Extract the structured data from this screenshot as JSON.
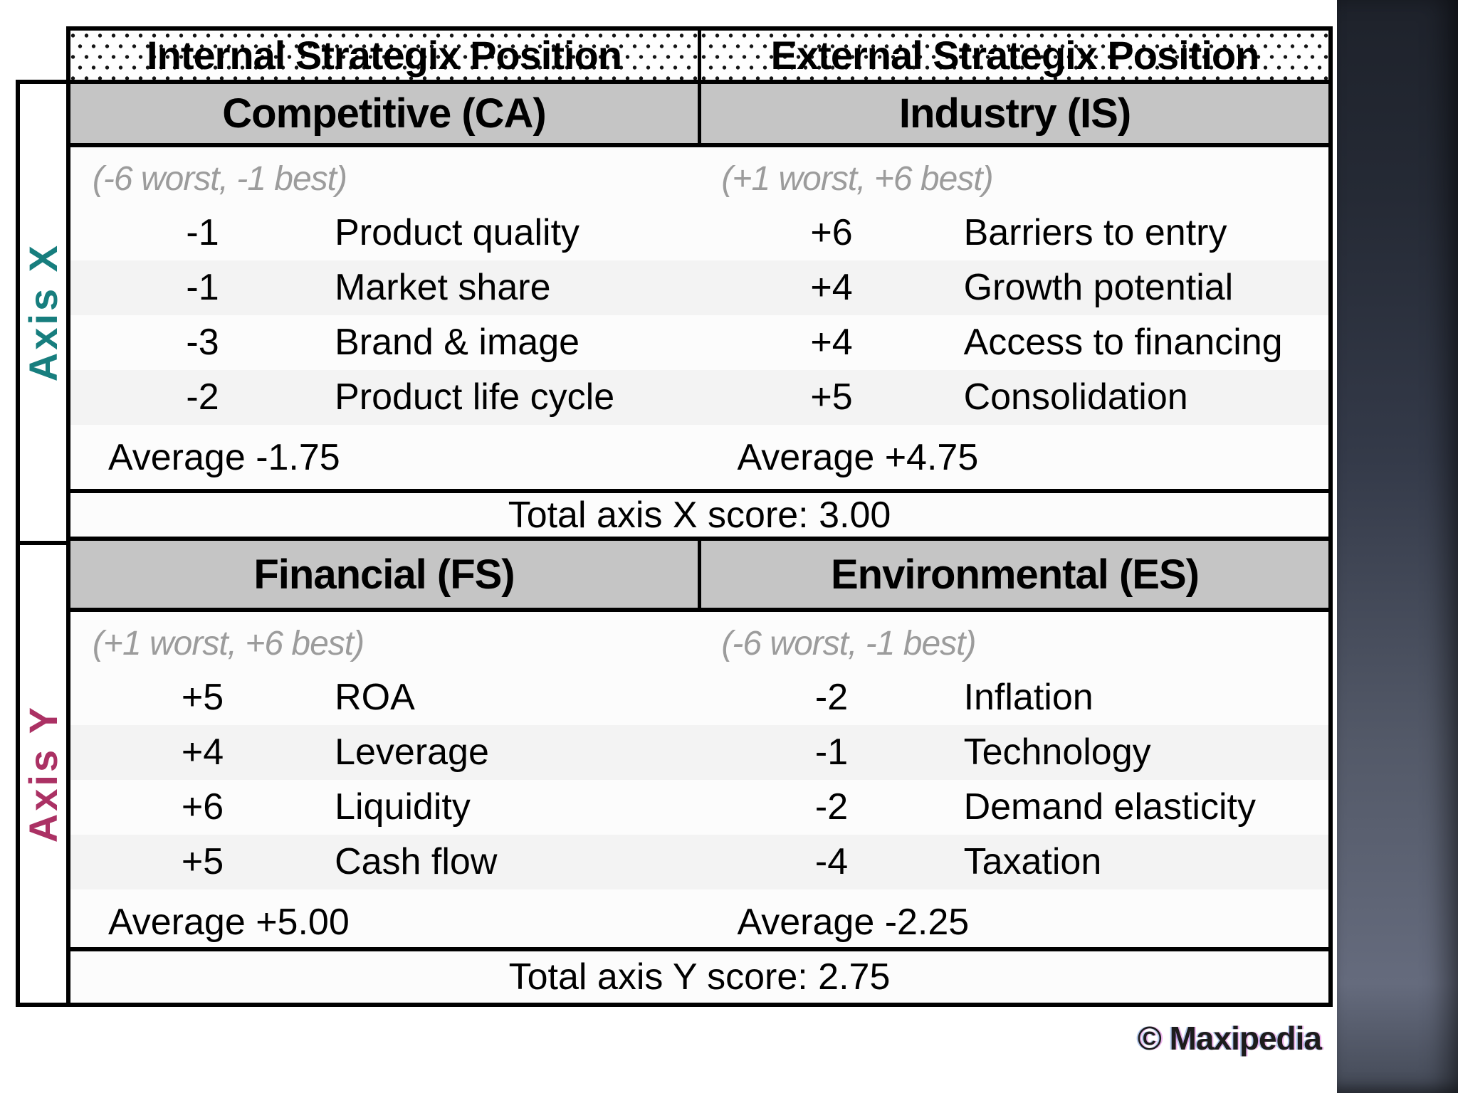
{
  "top_headers": {
    "internal": "Internal Strategix Position",
    "external": "External Strategix Position"
  },
  "axis_x": {
    "label": "Axis X",
    "total": "Total axis X score: 3.00",
    "left": {
      "header": "Competitive (CA)",
      "note": "(-6 worst, -1 best)",
      "average": "Average -1.75",
      "items": [
        {
          "v": "-1",
          "l": "Product quality"
        },
        {
          "v": "-1",
          "l": "Market share"
        },
        {
          "v": "-3",
          "l": "Brand & image"
        },
        {
          "v": "-2",
          "l": "Product life cycle"
        }
      ]
    },
    "right": {
      "header": "Industry (IS)",
      "note": "(+1 worst, +6 best)",
      "average": "Average +4.75",
      "items": [
        {
          "v": "+6",
          "l": "Barriers to entry"
        },
        {
          "v": "+4",
          "l": "Growth potential"
        },
        {
          "v": "+4",
          "l": "Access to financing"
        },
        {
          "v": "+5",
          "l": "Consolidation"
        }
      ]
    }
  },
  "axis_y": {
    "label": "Axis Y",
    "total": "Total axis Y score: 2.75",
    "left": {
      "header": "Financial (FS)",
      "note": "(+1 worst, +6 best)",
      "average": "Average +5.00",
      "items": [
        {
          "v": "+5",
          "l": "ROA"
        },
        {
          "v": "+4",
          "l": "Leverage"
        },
        {
          "v": "+6",
          "l": "Liquidity"
        },
        {
          "v": "+5",
          "l": "Cash flow"
        }
      ]
    },
    "right": {
      "header": "Environmental (ES)",
      "note": "(-6 worst, -1 best)",
      "average": "Average -2.25",
      "items": [
        {
          "v": "-2",
          "l": "Inflation"
        },
        {
          "v": "-1",
          "l": "Technology"
        },
        {
          "v": "-2",
          "l": "Demand elasticity"
        },
        {
          "v": "-4",
          "l": "Taxation"
        }
      ]
    }
  },
  "footer": {
    "copyright": "© Maxipedia"
  },
  "colors": {
    "axis_x_label": "#177e7e",
    "axis_y_label": "#ab3164",
    "section_header_bg": "#c5c5c5",
    "strip_top": "#1e222b",
    "strip_bottom": "#656b7d"
  }
}
